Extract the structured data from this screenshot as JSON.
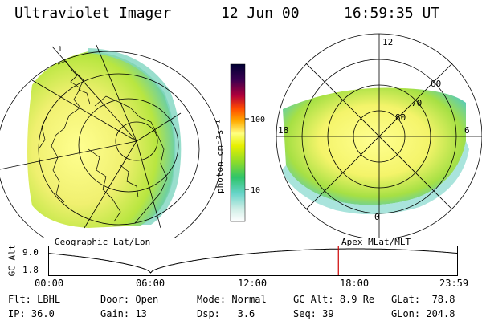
{
  "header": {
    "title": "Ultraviolet Imager",
    "date": "12 Jun 00",
    "time": "16:59:35 UT"
  },
  "left_panel": {
    "caption": "Geographic Lat/Lon",
    "marker": "1"
  },
  "right_panel": {
    "caption": "Apex MLat/MLT",
    "mlt_labels": {
      "top": "12",
      "left": "18",
      "right": "6",
      "bottom": "0"
    },
    "lat_labels": [
      "60",
      "70",
      "80"
    ]
  },
  "colorbar": {
    "unit_label": "photon cm⁻²s⁻¹",
    "ticks": [
      "100",
      "10"
    ],
    "scale": "log"
  },
  "altitude_plot": {
    "ylabel": "GC Alt",
    "y_ticks": [
      "9.0",
      "1.8"
    ],
    "x_ticks": [
      "00:00",
      "06:00",
      "12:00",
      "18:00",
      "23:59"
    ],
    "current_time_hours": 17.0
  },
  "status": {
    "filter": {
      "label": "Flt:",
      "value": "LBHL"
    },
    "ip": {
      "label": "IP:",
      "value": "36.0"
    },
    "door": {
      "label": "Door:",
      "value": "Open"
    },
    "gain": {
      "label": "Gain:",
      "value": "13"
    },
    "mode": {
      "label": "Mode:",
      "value": "Normal"
    },
    "dsp": {
      "label": "Dsp:",
      "value": "3.6"
    },
    "gc_alt": {
      "label": "GC Alt:",
      "value": "8.9 Re"
    },
    "seq": {
      "label": "Seq:",
      "value": "39"
    },
    "glat": {
      "label": "GLat:",
      "value": "78.8"
    },
    "glon": {
      "label": "GLon:",
      "value": "204.8"
    }
  },
  "colors": {
    "colormap": [
      "#ffffff",
      "#cfeee6",
      "#66d4c8",
      "#22a8dd",
      "#2fc46a",
      "#8edc2a",
      "#e6f000",
      "#ffff80",
      "#ffaa00",
      "#ff4a00",
      "#b0003a",
      "#3a0050",
      "#000033"
    ],
    "marker": "#cc0000"
  }
}
